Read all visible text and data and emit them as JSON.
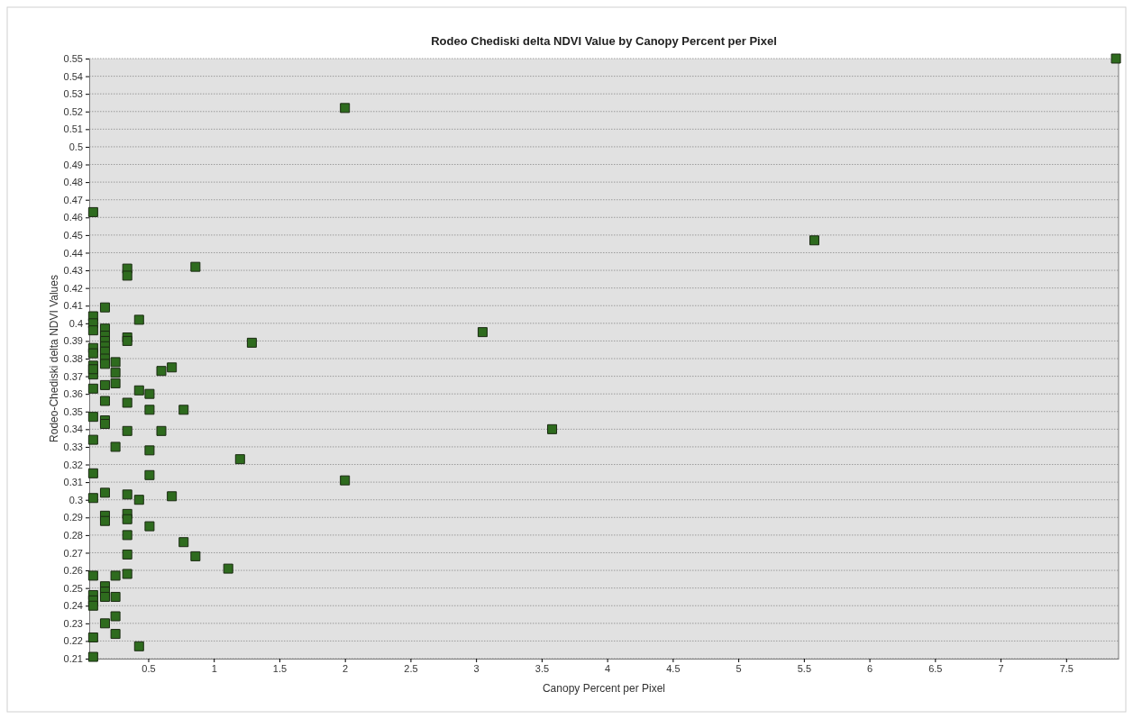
{
  "chart_data": {
    "type": "scatter",
    "title": "Rodeo Chediski delta NDVI Value by Canopy Percent per Pixel",
    "xlabel": "Canopy Percent per Pixel",
    "ylabel": "Rodeo-Chediski delta NDVI Values",
    "xlim": [
      0.05,
      7.9
    ],
    "xticks": [
      0.5,
      1,
      1.5,
      2,
      2.5,
      3,
      3.5,
      4,
      4.5,
      5,
      5.5,
      6,
      6.5,
      7,
      7.5
    ],
    "ylim": [
      0.21,
      0.55
    ],
    "yticks": [
      0.21,
      0.22,
      0.23,
      0.24,
      0.25,
      0.26,
      0.27,
      0.28,
      0.29,
      0.3,
      0.31,
      0.32,
      0.33,
      0.34,
      0.35,
      0.36,
      0.37,
      0.38,
      0.39,
      0.4,
      0.41,
      0.42,
      0.43,
      0.44,
      0.45,
      0.46,
      0.47,
      0.48,
      0.49,
      0.5,
      0.51,
      0.52,
      0.53,
      0.54,
      0.55
    ],
    "grid": "y",
    "marker": "square",
    "series": [
      {
        "color": "#2e6b1e",
        "x": [
          0.08,
          0.08,
          0.08,
          0.08,
          0.08,
          0.08,
          0.08,
          0.08,
          0.08,
          0.08,
          0.08,
          0.08,
          0.08,
          0.08,
          0.08,
          0.08,
          0.08,
          0.08,
          0.08,
          0.08,
          0.17,
          0.17,
          0.17,
          0.17,
          0.17,
          0.17,
          0.17,
          0.17,
          0.17,
          0.17,
          0.17,
          0.17,
          0.17,
          0.17,
          0.17,
          0.17,
          0.17,
          0.17,
          0.17,
          0.25,
          0.25,
          0.25,
          0.25,
          0.25,
          0.25,
          0.25,
          0.25,
          0.34,
          0.34,
          0.34,
          0.34,
          0.34,
          0.34,
          0.34,
          0.34,
          0.34,
          0.34,
          0.34,
          0.34,
          0.43,
          0.43,
          0.43,
          0.43,
          0.51,
          0.51,
          0.51,
          0.51,
          0.51,
          0.6,
          0.6,
          0.68,
          0.68,
          0.77,
          0.77,
          0.86,
          0.86,
          1.11,
          1.2,
          1.29,
          2,
          2,
          3.05,
          3.58,
          5.58,
          7.88
        ],
        "values": [
          0.463,
          0.404,
          0.4,
          0.396,
          0.386,
          0.383,
          0.376,
          0.371,
          0.363,
          0.347,
          0.334,
          0.315,
          0.301,
          0.257,
          0.246,
          0.243,
          0.24,
          0.222,
          0.211,
          0.374,
          0.409,
          0.397,
          0.393,
          0.39,
          0.387,
          0.384,
          0.38,
          0.377,
          0.365,
          0.356,
          0.345,
          0.343,
          0.304,
          0.291,
          0.288,
          0.251,
          0.248,
          0.245,
          0.23,
          0.378,
          0.372,
          0.366,
          0.33,
          0.257,
          0.245,
          0.234,
          0.224,
          0.431,
          0.427,
          0.392,
          0.39,
          0.355,
          0.339,
          0.303,
          0.292,
          0.289,
          0.28,
          0.269,
          0.258,
          0.402,
          0.362,
          0.3,
          0.217,
          0.36,
          0.351,
          0.328,
          0.314,
          0.285,
          0.373,
          0.339,
          0.375,
          0.302,
          0.351,
          0.276,
          0.432,
          0.268,
          0.261,
          0.323,
          0.389,
          0.522,
          0.311,
          0.395,
          0.34,
          0.447,
          0.55
        ]
      }
    ]
  }
}
